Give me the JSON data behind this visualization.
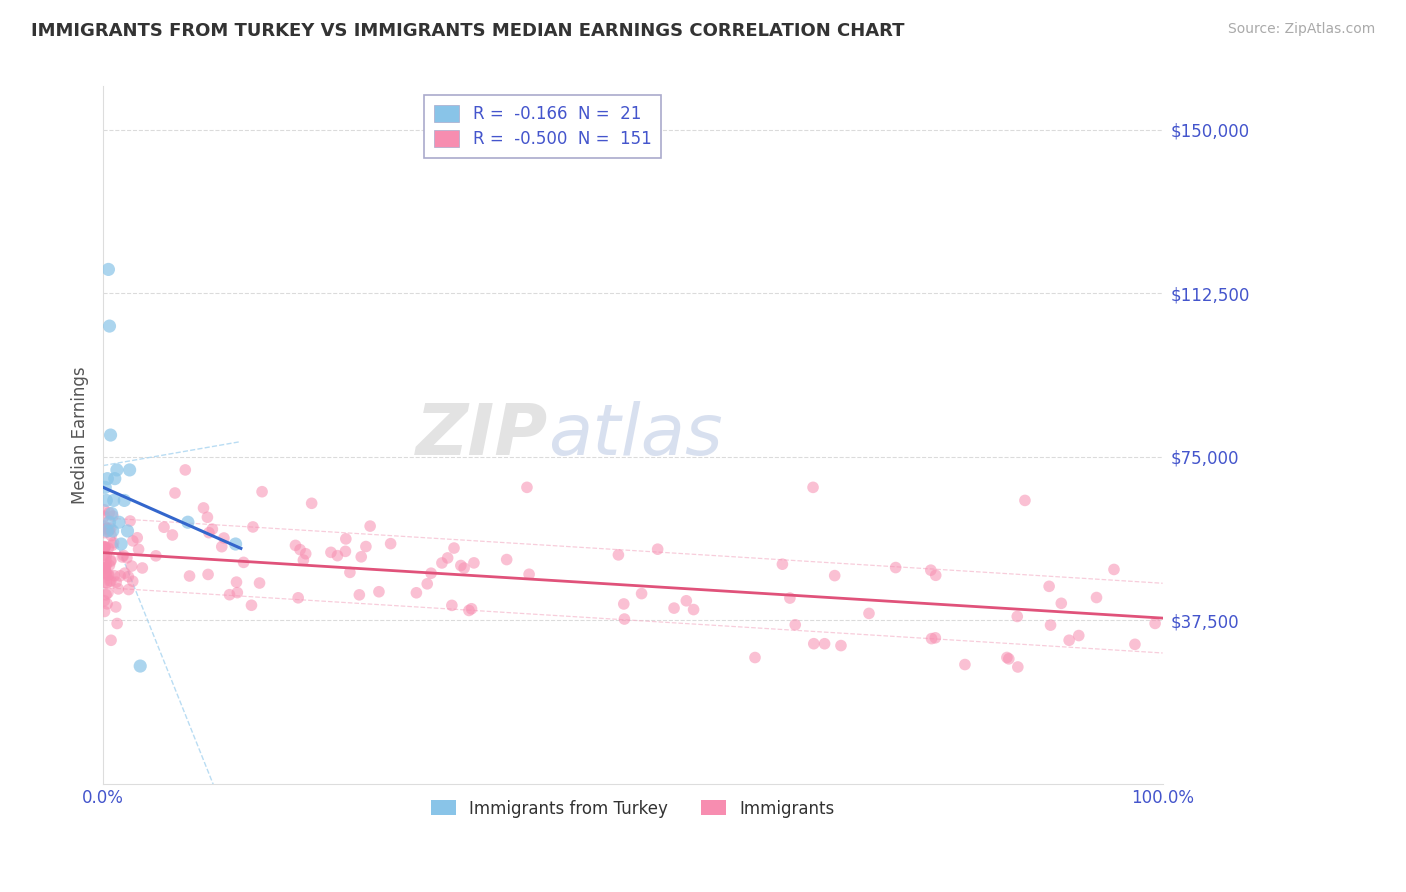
{
  "title": "IMMIGRANTS FROM TURKEY VS IMMIGRANTS MEDIAN EARNINGS CORRELATION CHART",
  "source": "Source: ZipAtlas.com",
  "ylabel": "Median Earnings",
  "xlim": [
    0.0,
    100.0
  ],
  "ylim": [
    0,
    160000
  ],
  "yticks": [
    0,
    37500,
    75000,
    112500,
    150000
  ],
  "ytick_labels": [
    "",
    "$37,500",
    "$75,000",
    "$112,500",
    "$150,000"
  ],
  "legend_blue_R": "-0.166",
  "legend_blue_N": "21",
  "legend_pink_R": "-0.500",
  "legend_pink_N": "151",
  "blue_dot_color": "#89c4e8",
  "pink_dot_color": "#f78db0",
  "blue_line_color": "#3366cc",
  "pink_line_color": "#e0527a",
  "blue_ci_color": "#a8d4f0",
  "pink_ci_color": "#f5b8cc",
  "background_color": "#ffffff",
  "grid_color": "#cccccc",
  "axis_label_color": "#4455cc",
  "title_color": "#333333",
  "source_color": "#aaaaaa",
  "watermark_zip_color": "#cccccc",
  "watermark_atlas_color": "#aabbdd"
}
